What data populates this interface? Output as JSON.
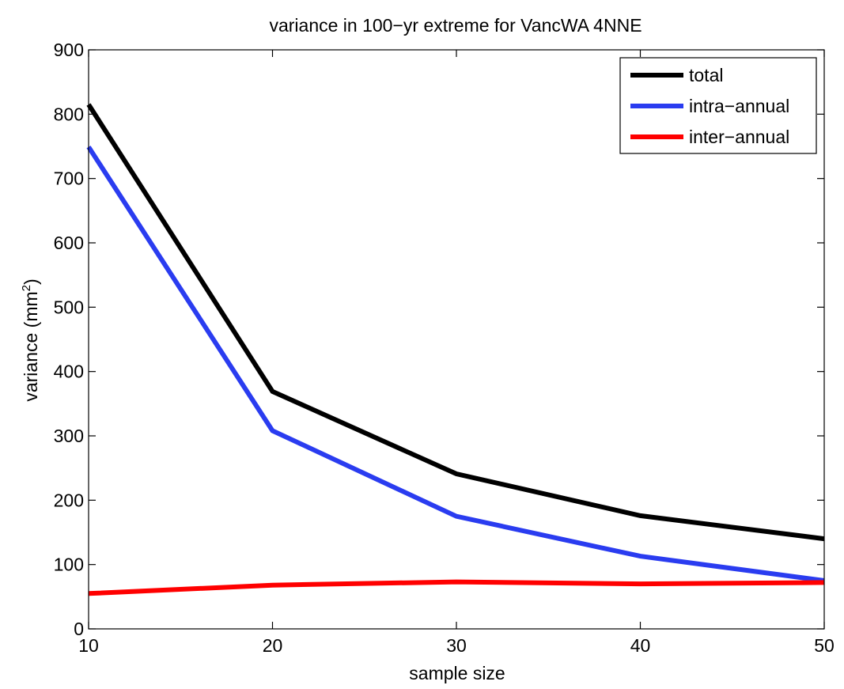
{
  "chart_data": {
    "type": "line",
    "title": "variance in 100−yr extreme for VancWA 4NNE",
    "xlabel": "sample size",
    "ylabel": {
      "prefix": "variance (mm",
      "superscript": "2",
      "suffix": ")"
    },
    "x": [
      10,
      20,
      30,
      40,
      50
    ],
    "xlim": [
      10,
      50
    ],
    "ylim": [
      0,
      900
    ],
    "xticks": [
      10,
      20,
      30,
      40,
      50
    ],
    "yticks": [
      0,
      100,
      200,
      300,
      400,
      500,
      600,
      700,
      800,
      900
    ],
    "grid": false,
    "legend_position": "top-right",
    "series": [
      {
        "name": "total",
        "color": "#000000",
        "values": [
          815,
          369,
          241,
          176,
          140
        ]
      },
      {
        "name": "intra−annual",
        "color": "#2a3cf0",
        "values": [
          749,
          308,
          175,
          113,
          75
        ]
      },
      {
        "name": "inter−annual",
        "color": "#ff0000",
        "values": [
          55,
          68,
          73,
          70,
          72
        ]
      }
    ]
  }
}
